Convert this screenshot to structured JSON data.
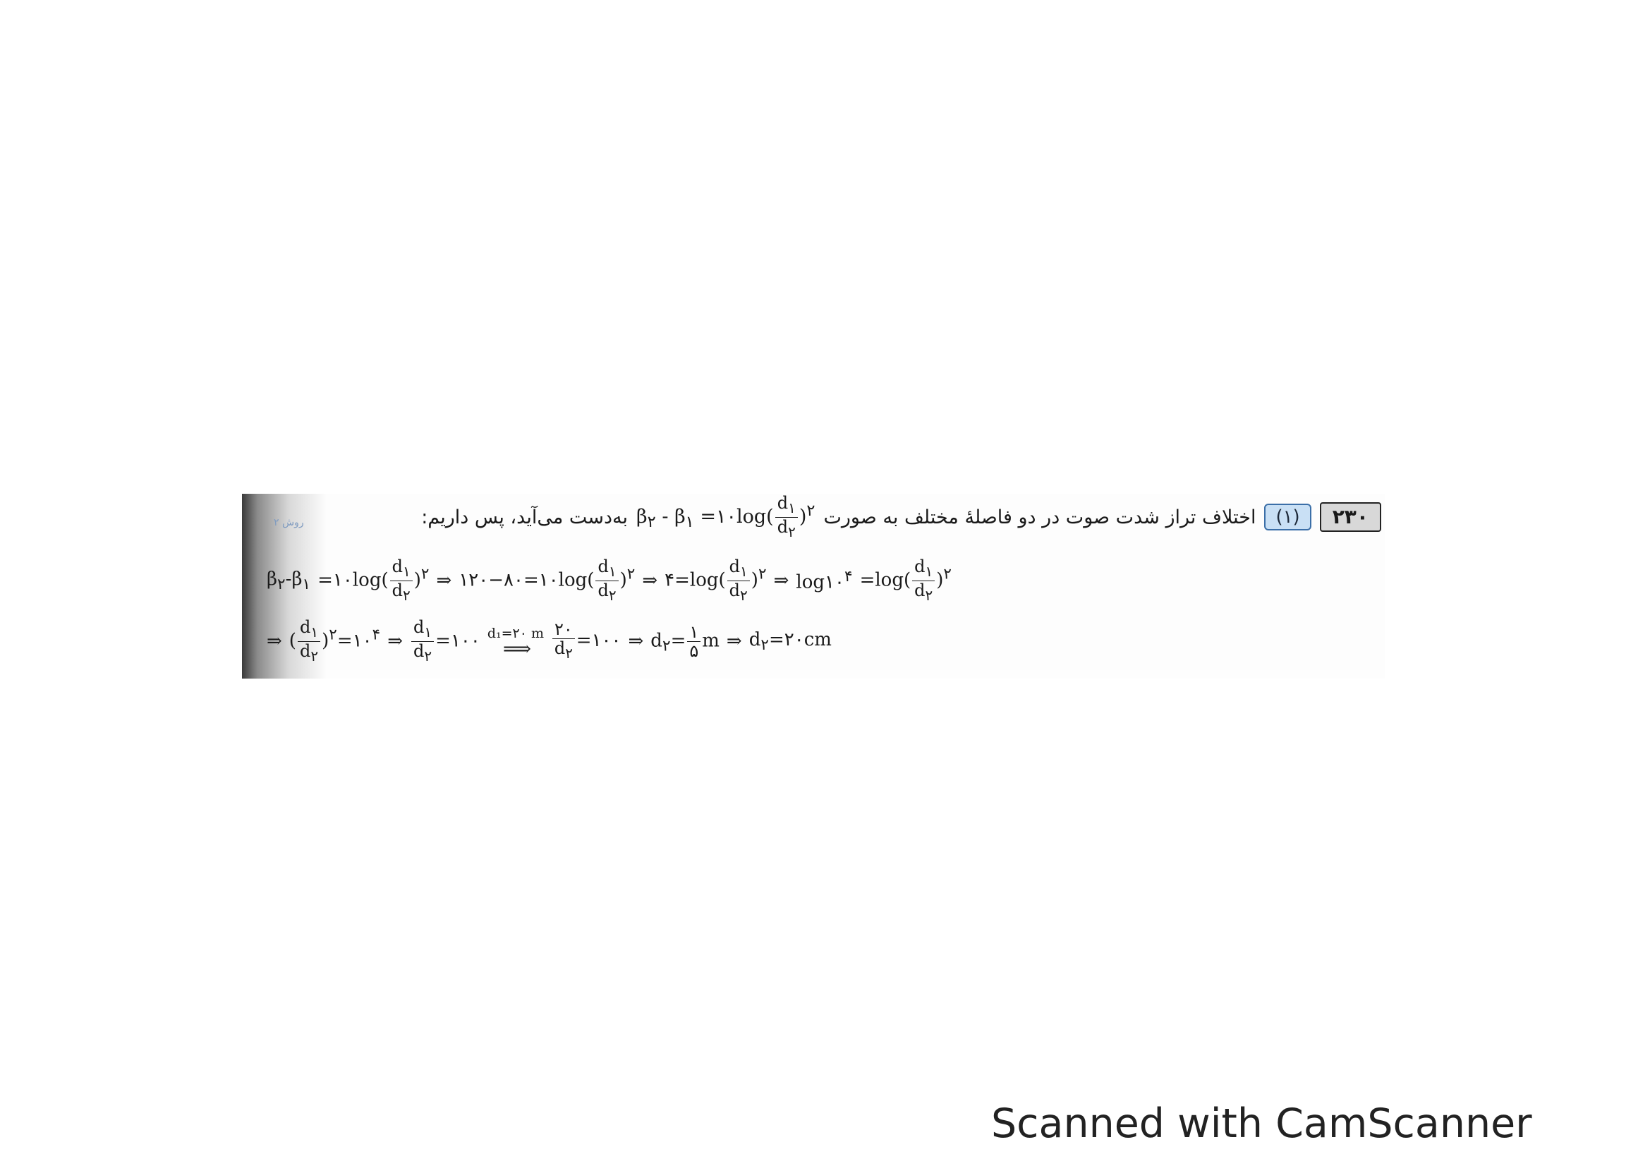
{
  "question_number": "۲۳۰",
  "answer_choice": "(۱)",
  "side_label": "روش ۲",
  "intro_text_before": "اختلاف تراز شدت صوت در دو فاصلهٔ مختلف به صورت",
  "intro_formula_lhs": "β",
  "intro_formula_lhs_sub2": "۲",
  "intro_formula_minus": "-",
  "intro_formula_lhs_sub1": "۱",
  "intro_formula_mid": "=۱۰log(",
  "frac_num": "d",
  "frac_num_sub": "۱",
  "frac_den": "d",
  "frac_den_sub": "۲",
  "intro_formula_close": ")",
  "intro_formula_pow": "۲",
  "intro_text_after": "به‌دست می‌آید، پس داریم:",
  "line2": {
    "part1": "=۱۰log(",
    "close_pow": ")",
    "pow": "۲",
    "implies1": "⇒",
    "part2": "۱۲۰−۸۰=۱۰log(",
    "implies2": "⇒",
    "part3": "۴=log(",
    "implies3": "⇒",
    "part4": "log۱۰",
    "pow4": "۴",
    "part5": "=log("
  },
  "line3": {
    "implies_start": "⇒",
    "eq1": "=۱۰",
    "pow1": "۴",
    "implies1": "⇒",
    "eq2": "=۱۰۰",
    "condition": "d₁=۲۰ m",
    "arrow": "⟹",
    "num20": "۲۰",
    "eq3": "=۱۰۰",
    "implies2": "⇒",
    "d2_eq": "d",
    "d2_sub": "۲",
    "eq_sign": "=",
    "frac_one": "۱",
    "frac_five": "۵",
    "unit_m": "m",
    "implies3": "⇒",
    "result": "=۲۰cm"
  },
  "footer_text": "Scanned with CamScanner"
}
